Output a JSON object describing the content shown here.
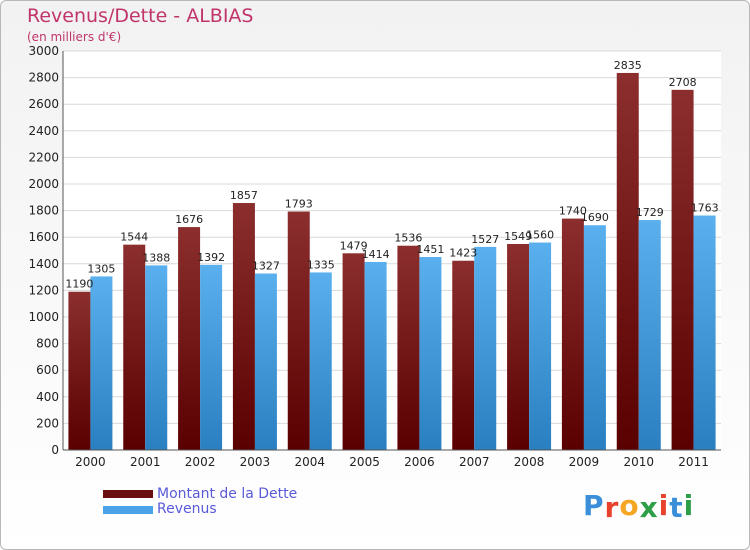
{
  "chart_data": {
    "type": "bar",
    "title": "Revenus/Dette - ALBIAS",
    "subtitle": "(en milliers d'€)",
    "categories": [
      "2000",
      "2001",
      "2002",
      "2003",
      "2004",
      "2005",
      "2006",
      "2007",
      "2008",
      "2009",
      "2010",
      "2011"
    ],
    "series": [
      {
        "name": "Montant de la Dette",
        "color": "#7a1a1a",
        "values": [
          1190,
          1544,
          1676,
          1857,
          1793,
          1479,
          1536,
          1423,
          1549,
          1740,
          2835,
          2708
        ]
      },
      {
        "name": "Revenus",
        "color": "#4aa3e8",
        "values": [
          1305,
          1388,
          1392,
          1327,
          1335,
          1414,
          1451,
          1527,
          1560,
          1690,
          1729,
          1763
        ]
      }
    ],
    "ylim": [
      0,
      3000
    ],
    "yticks": [
      0,
      200,
      400,
      600,
      800,
      1000,
      1200,
      1400,
      1600,
      1800,
      2000,
      2200,
      2400,
      2600,
      2800,
      3000
    ],
    "grid": true,
    "legend": "bottom-left"
  },
  "logo": {
    "letters": [
      "P",
      "r",
      "o",
      "x",
      "i",
      "t",
      "i"
    ],
    "colors": [
      "#3b8fd9",
      "#e8412c",
      "#f5a623",
      "#2e9e48",
      "#e8412c",
      "#3b8fd9",
      "#2e9e48"
    ]
  }
}
